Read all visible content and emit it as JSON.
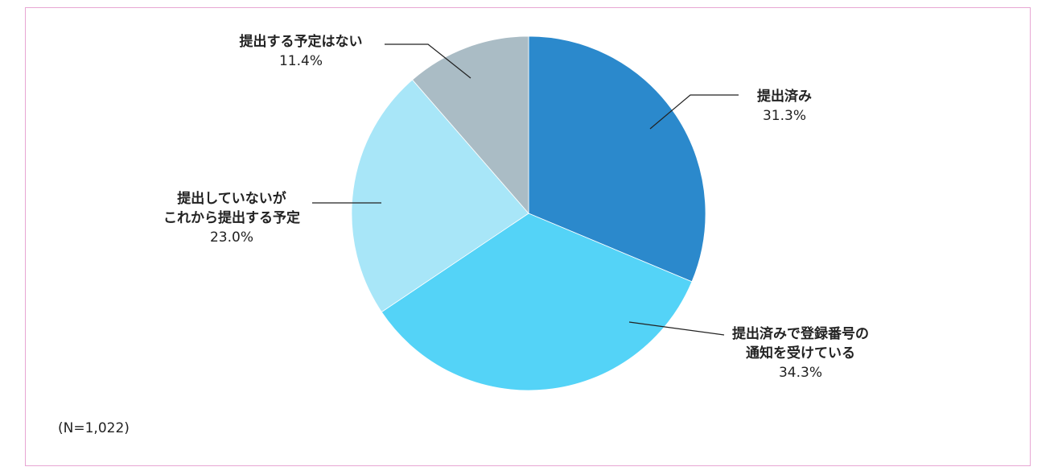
{
  "chart_data": {
    "type": "pie",
    "start_angle_deg": 0,
    "direction": "clockwise",
    "slices": [
      {
        "label_lines": [
          "提出済み"
        ],
        "value": 31.3,
        "value_label": "31.3%",
        "color": "#2b89cc"
      },
      {
        "label_lines": [
          "提出済みで登録番号の",
          "通知を受けている"
        ],
        "value": 34.3,
        "value_label": "34.3%",
        "color": "#54d3f7"
      },
      {
        "label_lines": [
          "提出していないが",
          "これから提出する予定"
        ],
        "value": 23.0,
        "value_label": "23.0%",
        "color": "#a8e6f8"
      },
      {
        "label_lines": [
          "提出する予定はない"
        ],
        "value": 11.4,
        "value_label": "11.4%",
        "color": "#aabcc5"
      }
    ],
    "note": "(N=1,022)"
  },
  "colors": {
    "border": "#e8a6d3",
    "text": "#222222"
  }
}
